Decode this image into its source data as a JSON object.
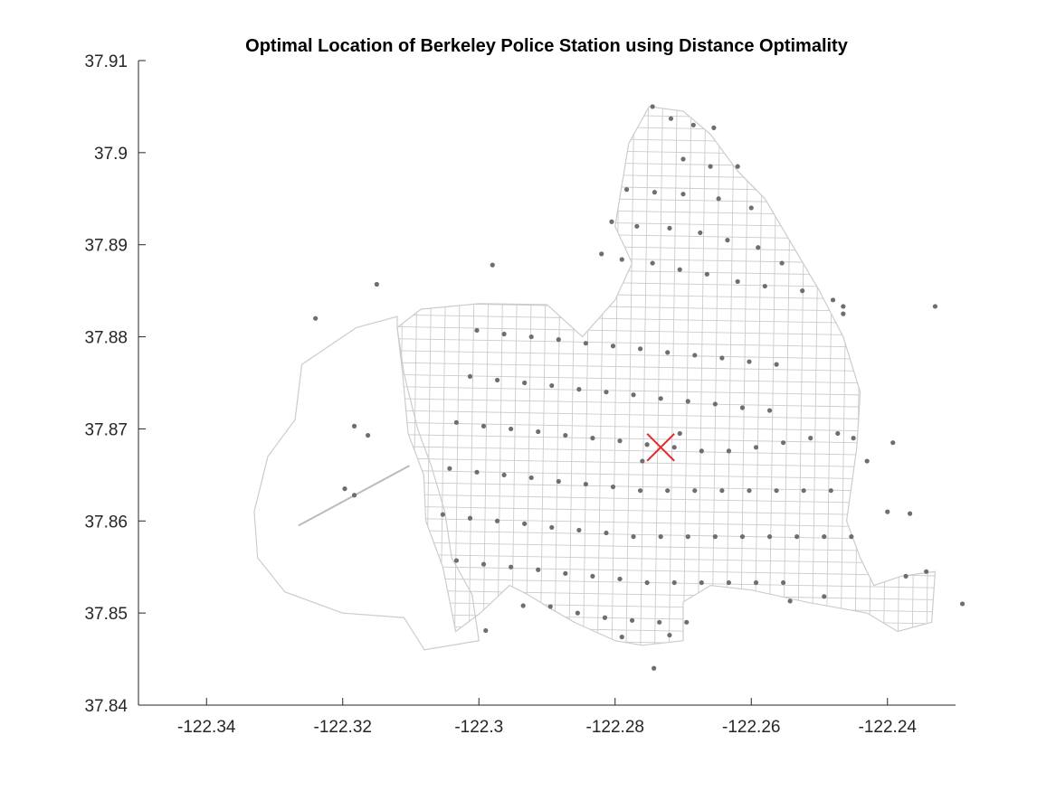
{
  "chart_data": {
    "type": "scatter",
    "title": "Optimal Location of Berkeley Police Station using Distance Optimality",
    "xlabel": "",
    "ylabel": "",
    "xlim": [
      -122.35,
      -122.23
    ],
    "ylim": [
      37.84,
      37.91
    ],
    "x_ticks": [
      -122.34,
      -122.32,
      -122.3,
      -122.28,
      -122.26,
      -122.24
    ],
    "x_tick_labels": [
      "-122.34",
      "-122.32",
      "-122.3",
      "-122.28",
      "-122.26",
      "-122.24"
    ],
    "y_ticks": [
      37.84,
      37.85,
      37.86,
      37.87,
      37.88,
      37.89,
      37.9,
      37.91
    ],
    "y_tick_labels": [
      "37.84",
      "37.85",
      "37.86",
      "37.87",
      "37.88",
      "37.89",
      "37.9",
      "37.91"
    ],
    "grid": false,
    "colors": {
      "street_network": "#cccccc",
      "crime_points": "#6e6e6e",
      "optimal_marker": "#e8262a",
      "axes": "#262626"
    },
    "optimal_location": {
      "x": -122.2733,
      "y": 37.868,
      "marker": "x"
    },
    "boundary_outline": [
      [
        -122.2928,
        37.852
      ],
      [
        -122.2955,
        37.853
      ],
      [
        -122.2998,
        37.85
      ],
      [
        -122.3034,
        37.848
      ],
      [
        -122.3053,
        37.855
      ],
      [
        -122.3078,
        37.86
      ],
      [
        -122.3081,
        37.865
      ],
      [
        -122.3104,
        37.8695
      ],
      [
        -122.3112,
        37.876
      ],
      [
        -122.312,
        37.881
      ],
      [
        -122.3085,
        37.883
      ],
      [
        -122.3,
        37.8836
      ],
      [
        -122.29,
        37.8835
      ],
      [
        -122.2848,
        37.88
      ],
      [
        -122.28,
        37.884
      ],
      [
        -122.2775,
        37.888
      ],
      [
        -122.28,
        37.892
      ],
      [
        -122.278,
        37.901
      ],
      [
        -122.275,
        37.905
      ],
      [
        -122.27,
        37.9045
      ],
      [
        -122.266,
        37.902
      ],
      [
        -122.262,
        37.898
      ],
      [
        -122.258,
        37.895
      ],
      [
        -122.254,
        37.89
      ],
      [
        -122.25,
        37.885
      ],
      [
        -122.2465,
        37.88
      ],
      [
        -122.244,
        37.874
      ],
      [
        -122.2445,
        37.868
      ],
      [
        -122.246,
        37.86
      ],
      [
        -122.244,
        37.856
      ],
      [
        -122.242,
        37.853
      ],
      [
        -122.238,
        37.854
      ],
      [
        -122.233,
        37.8545
      ],
      [
        -122.2335,
        37.849
      ],
      [
        -122.2385,
        37.848
      ],
      [
        -122.243,
        37.85
      ],
      [
        -122.252,
        37.8512
      ],
      [
        -122.26,
        37.8525
      ],
      [
        -122.266,
        37.853
      ],
      [
        -122.27,
        37.8512
      ],
      [
        -122.27,
        37.847
      ],
      [
        -122.276,
        37.8465
      ],
      [
        -122.28,
        37.847
      ],
      [
        -122.283,
        37.848
      ],
      [
        -122.286,
        37.849
      ],
      [
        -122.2895,
        37.8505
      ],
      [
        -122.2928,
        37.852
      ]
    ],
    "marina_outline": [
      [
        -122.3,
        37.847
      ],
      [
        -122.301,
        37.852
      ],
      [
        -122.304,
        37.856
      ],
      [
        -122.305,
        37.861
      ],
      [
        -122.307,
        37.866
      ],
      [
        -122.309,
        37.87
      ],
      [
        -122.311,
        37.876
      ],
      [
        -122.312,
        37.881
      ],
      [
        -122.312,
        37.8822
      ],
      [
        -122.318,
        37.881
      ],
      [
        -122.326,
        37.877
      ],
      [
        -122.327,
        37.871
      ],
      [
        -122.331,
        37.867
      ],
      [
        -122.333,
        37.861
      ],
      [
        -122.3325,
        37.856
      ],
      [
        -122.3285,
        37.8523
      ],
      [
        -122.32,
        37.85
      ],
      [
        -122.311,
        37.8495
      ],
      [
        -122.308,
        37.846
      ],
      [
        -122.3,
        37.847
      ]
    ],
    "crime_points": [
      [
        -122.2745,
        37.905
      ],
      [
        -122.2718,
        37.9037
      ],
      [
        -122.2685,
        37.903
      ],
      [
        -122.2655,
        37.9027
      ],
      [
        -122.27,
        37.8993
      ],
      [
        -122.266,
        37.8985
      ],
      [
        -122.262,
        37.8985
      ],
      [
        -122.2783,
        37.896
      ],
      [
        -122.2742,
        37.8957
      ],
      [
        -122.27,
        37.8955
      ],
      [
        -122.2648,
        37.895
      ],
      [
        -122.26,
        37.894
      ],
      [
        -122.2805,
        37.8925
      ],
      [
        -122.2768,
        37.892
      ],
      [
        -122.272,
        37.8918
      ],
      [
        -122.2675,
        37.8913
      ],
      [
        -122.2635,
        37.8905
      ],
      [
        -122.259,
        37.8897
      ],
      [
        -122.2555,
        37.888
      ],
      [
        -122.282,
        37.889
      ],
      [
        -122.279,
        37.8884
      ],
      [
        -122.2745,
        37.888
      ],
      [
        -122.2705,
        37.8873
      ],
      [
        -122.2665,
        37.8868
      ],
      [
        -122.262,
        37.886
      ],
      [
        -122.258,
        37.8855
      ],
      [
        -122.2525,
        37.885
      ],
      [
        -122.248,
        37.884
      ],
      [
        -122.2465,
        37.8825
      ],
      [
        -122.298,
        37.8878
      ],
      [
        -122.315,
        37.8857
      ],
      [
        -122.324,
        37.882
      ],
      [
        -122.3003,
        37.8807
      ],
      [
        -122.2963,
        37.8803
      ],
      [
        -122.2923,
        37.88
      ],
      [
        -122.2883,
        37.8797
      ],
      [
        -122.2843,
        37.8793
      ],
      [
        -122.2803,
        37.879
      ],
      [
        -122.2763,
        37.8787
      ],
      [
        -122.2723,
        37.8783
      ],
      [
        -122.2683,
        37.878
      ],
      [
        -122.2643,
        37.8777
      ],
      [
        -122.2603,
        37.8773
      ],
      [
        -122.2563,
        37.877
      ],
      [
        -122.3013,
        37.8757
      ],
      [
        -122.2973,
        37.8753
      ],
      [
        -122.2933,
        37.875
      ],
      [
        -122.2893,
        37.8747
      ],
      [
        -122.2853,
        37.8743
      ],
      [
        -122.2813,
        37.874
      ],
      [
        -122.2773,
        37.8737
      ],
      [
        -122.2733,
        37.8733
      ],
      [
        -122.2693,
        37.873
      ],
      [
        -122.2653,
        37.8727
      ],
      [
        -122.2613,
        37.8723
      ],
      [
        -122.2573,
        37.872
      ],
      [
        -122.3033,
        37.8707
      ],
      [
        -122.2993,
        37.8703
      ],
      [
        -122.2953,
        37.87
      ],
      [
        -122.2913,
        37.8697
      ],
      [
        -122.2873,
        37.8693
      ],
      [
        -122.2833,
        37.869
      ],
      [
        -122.2793,
        37.8687
      ],
      [
        -122.2753,
        37.8683
      ],
      [
        -122.2713,
        37.868
      ],
      [
        -122.2673,
        37.8676
      ],
      [
        -122.2633,
        37.8676
      ],
      [
        -122.2593,
        37.868
      ],
      [
        -122.2553,
        37.8685
      ],
      [
        -122.2513,
        37.869
      ],
      [
        -122.2473,
        37.8695
      ],
      [
        -122.245,
        37.869
      ],
      [
        -122.3183,
        37.8703
      ],
      [
        -122.3163,
        37.8693
      ],
      [
        -122.3043,
        37.8657
      ],
      [
        -122.3003,
        37.8653
      ],
      [
        -122.2963,
        37.865
      ],
      [
        -122.2923,
        37.8647
      ],
      [
        -122.2883,
        37.8643
      ],
      [
        -122.2843,
        37.864
      ],
      [
        -122.2803,
        37.8637
      ],
      [
        -122.2763,
        37.8633
      ],
      [
        -122.2723,
        37.8633
      ],
      [
        -122.2683,
        37.8633
      ],
      [
        -122.2643,
        37.8633
      ],
      [
        -122.2603,
        37.8633
      ],
      [
        -122.2563,
        37.8633
      ],
      [
        -122.2523,
        37.8633
      ],
      [
        -122.2483,
        37.8633
      ],
      [
        -122.3197,
        37.8635
      ],
      [
        -122.3183,
        37.8628
      ],
      [
        -122.3053,
        37.8607
      ],
      [
        -122.3013,
        37.8603
      ],
      [
        -122.2973,
        37.86
      ],
      [
        -122.2933,
        37.8597
      ],
      [
        -122.2893,
        37.8593
      ],
      [
        -122.2853,
        37.859
      ],
      [
        -122.2813,
        37.8587
      ],
      [
        -122.2773,
        37.8583
      ],
      [
        -122.2733,
        37.8583
      ],
      [
        -122.2693,
        37.8583
      ],
      [
        -122.2653,
        37.8583
      ],
      [
        -122.2613,
        37.8583
      ],
      [
        -122.2573,
        37.8583
      ],
      [
        -122.2533,
        37.8583
      ],
      [
        -122.2493,
        37.8583
      ],
      [
        -122.2453,
        37.8583
      ],
      [
        -122.3033,
        37.8557
      ],
      [
        -122.2993,
        37.8553
      ],
      [
        -122.2953,
        37.855
      ],
      [
        -122.2913,
        37.8547
      ],
      [
        -122.2873,
        37.8543
      ],
      [
        -122.2833,
        37.854
      ],
      [
        -122.2793,
        37.8537
      ],
      [
        -122.2753,
        37.8533
      ],
      [
        -122.2713,
        37.8533
      ],
      [
        -122.2673,
        37.8533
      ],
      [
        -122.2633,
        37.8533
      ],
      [
        -122.2593,
        37.8533
      ],
      [
        -122.2553,
        37.8533
      ],
      [
        -122.2373,
        37.854
      ],
      [
        -122.2343,
        37.8545
      ],
      [
        -122.2935,
        37.8508
      ],
      [
        -122.2895,
        37.8507
      ],
      [
        -122.2855,
        37.85
      ],
      [
        -122.2815,
        37.8495
      ],
      [
        -122.2775,
        37.8492
      ],
      [
        -122.2735,
        37.849
      ],
      [
        -122.2695,
        37.849
      ],
      [
        -122.2543,
        37.8513
      ],
      [
        -122.2493,
        37.8518
      ],
      [
        -122.299,
        37.8481
      ],
      [
        -122.279,
        37.8474
      ],
      [
        -122.272,
        37.8476
      ],
      [
        -122.2743,
        37.844
      ],
      [
        -122.229,
        37.851
      ],
      [
        -122.243,
        37.8665
      ],
      [
        -122.2392,
        37.8685
      ],
      [
        -122.24,
        37.861
      ],
      [
        -122.2367,
        37.8608
      ],
      [
        -122.233,
        37.8833
      ],
      [
        -122.2465,
        37.8833
      ],
      [
        -122.2705,
        37.8695
      ],
      [
        -122.276,
        37.8665
      ]
    ]
  }
}
